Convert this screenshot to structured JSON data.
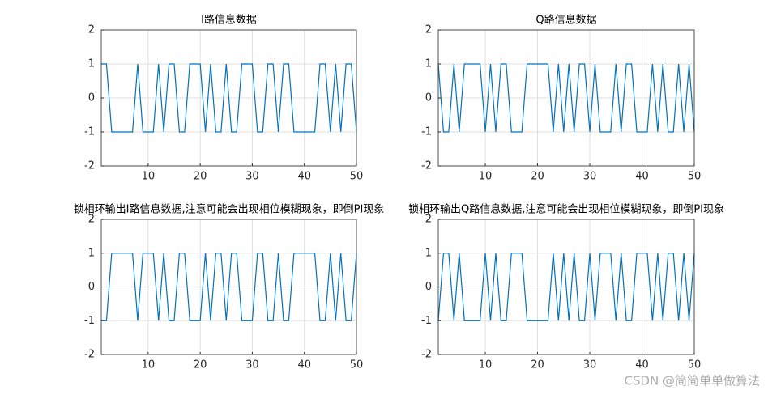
{
  "chart_data": [
    {
      "type": "line",
      "title": "I路信息数据",
      "x": [
        1,
        2,
        3,
        4,
        5,
        6,
        7,
        8,
        9,
        10,
        11,
        12,
        13,
        14,
        15,
        16,
        17,
        18,
        19,
        20,
        21,
        22,
        23,
        24,
        25,
        26,
        27,
        28,
        29,
        30,
        31,
        32,
        33,
        34,
        35,
        36,
        37,
        38,
        39,
        40,
        41,
        42,
        43,
        44,
        45,
        46,
        47,
        48,
        49,
        50
      ],
      "values": [
        1,
        1,
        -1,
        -1,
        -1,
        -1,
        -1,
        1,
        -1,
        -1,
        -1,
        1,
        -1,
        1,
        1,
        -1,
        -1,
        1,
        1,
        1,
        -1,
        1,
        -1,
        -1,
        1,
        -1,
        -1,
        1,
        1,
        1,
        -1,
        -1,
        1,
        1,
        -1,
        1,
        1,
        -1,
        -1,
        -1,
        -1,
        -1,
        1,
        1,
        -1,
        1,
        -1,
        1,
        1,
        -1
      ],
      "color": "#0072bd",
      "xlim": [
        1,
        50
      ],
      "ylim": [
        -2,
        2
      ],
      "xticks": [
        10,
        20,
        30,
        40,
        50
      ],
      "yticks": [
        -2,
        -1,
        0,
        1,
        2
      ],
      "grid": true
    },
    {
      "type": "line",
      "title": "Q路信息数据",
      "x": [
        1,
        2,
        3,
        4,
        5,
        6,
        7,
        8,
        9,
        10,
        11,
        12,
        13,
        14,
        15,
        16,
        17,
        18,
        19,
        20,
        21,
        22,
        23,
        24,
        25,
        26,
        27,
        28,
        29,
        30,
        31,
        32,
        33,
        34,
        35,
        36,
        37,
        38,
        39,
        40,
        41,
        42,
        43,
        44,
        45,
        46,
        47,
        48,
        49,
        50
      ],
      "values": [
        1,
        -1,
        -1,
        1,
        -1,
        1,
        1,
        1,
        1,
        -1,
        1,
        -1,
        1,
        1,
        -1,
        -1,
        -1,
        1,
        1,
        1,
        1,
        1,
        -1,
        1,
        -1,
        1,
        -1,
        1,
        1,
        -1,
        1,
        -1,
        -1,
        -1,
        1,
        -1,
        1,
        1,
        -1,
        -1,
        -1,
        1,
        -1,
        1,
        -1,
        -1,
        1,
        -1,
        1,
        -1
      ],
      "color": "#0072bd",
      "xlim": [
        1,
        50
      ],
      "ylim": [
        -2,
        2
      ],
      "xticks": [
        10,
        20,
        30,
        40,
        50
      ],
      "yticks": [
        -2,
        -1,
        0,
        1,
        2
      ],
      "grid": true
    },
    {
      "type": "line",
      "title": "锁相环输出I路信息数据,注意可能会出现相位模糊现象，即倒PI现象",
      "x": [
        1,
        2,
        3,
        4,
        5,
        6,
        7,
        8,
        9,
        10,
        11,
        12,
        13,
        14,
        15,
        16,
        17,
        18,
        19,
        20,
        21,
        22,
        23,
        24,
        25,
        26,
        27,
        28,
        29,
        30,
        31,
        32,
        33,
        34,
        35,
        36,
        37,
        38,
        39,
        40,
        41,
        42,
        43,
        44,
        45,
        46,
        47,
        48,
        49,
        50
      ],
      "values": [
        -1,
        -1,
        1,
        1,
        1,
        1,
        1,
        -1,
        1,
        1,
        1,
        -1,
        1,
        -1,
        -1,
        1,
        1,
        -1,
        -1,
        -1,
        1,
        -1,
        1,
        1,
        -1,
        1,
        1,
        -1,
        -1,
        -1,
        1,
        1,
        -1,
        -1,
        1,
        -1,
        -1,
        1,
        1,
        1,
        1,
        1,
        -1,
        -1,
        1,
        -1,
        1,
        -1,
        -1,
        1
      ],
      "color": "#0072bd",
      "xlim": [
        1,
        50
      ],
      "ylim": [
        -2,
        2
      ],
      "xticks": [
        10,
        20,
        30,
        40,
        50
      ],
      "yticks": [
        -2,
        -1,
        0,
        1,
        2
      ],
      "grid": true
    },
    {
      "type": "line",
      "title": "锁相环输出Q路信息数据,注意可能会出现相位模糊现象，即倒PI现象",
      "x": [
        1,
        2,
        3,
        4,
        5,
        6,
        7,
        8,
        9,
        10,
        11,
        12,
        13,
        14,
        15,
        16,
        17,
        18,
        19,
        20,
        21,
        22,
        23,
        24,
        25,
        26,
        27,
        28,
        29,
        30,
        31,
        32,
        33,
        34,
        35,
        36,
        37,
        38,
        39,
        40,
        41,
        42,
        43,
        44,
        45,
        46,
        47,
        48,
        49,
        50
      ],
      "values": [
        -1,
        1,
        1,
        -1,
        1,
        -1,
        -1,
        -1,
        -1,
        1,
        -1,
        1,
        -1,
        -1,
        1,
        1,
        1,
        -1,
        -1,
        -1,
        -1,
        -1,
        1,
        -1,
        1,
        -1,
        1,
        -1,
        -1,
        1,
        -1,
        1,
        1,
        1,
        -1,
        1,
        -1,
        -1,
        1,
        1,
        1,
        -1,
        1,
        -1,
        1,
        1,
        -1,
        1,
        -1,
        1
      ],
      "color": "#0072bd",
      "xlim": [
        1,
        50
      ],
      "ylim": [
        -2,
        2
      ],
      "xticks": [
        10,
        20,
        30,
        40,
        50
      ],
      "yticks": [
        -2,
        -1,
        0,
        1,
        2
      ],
      "grid": true
    }
  ],
  "watermark": "CSDN @简简单单做算法"
}
